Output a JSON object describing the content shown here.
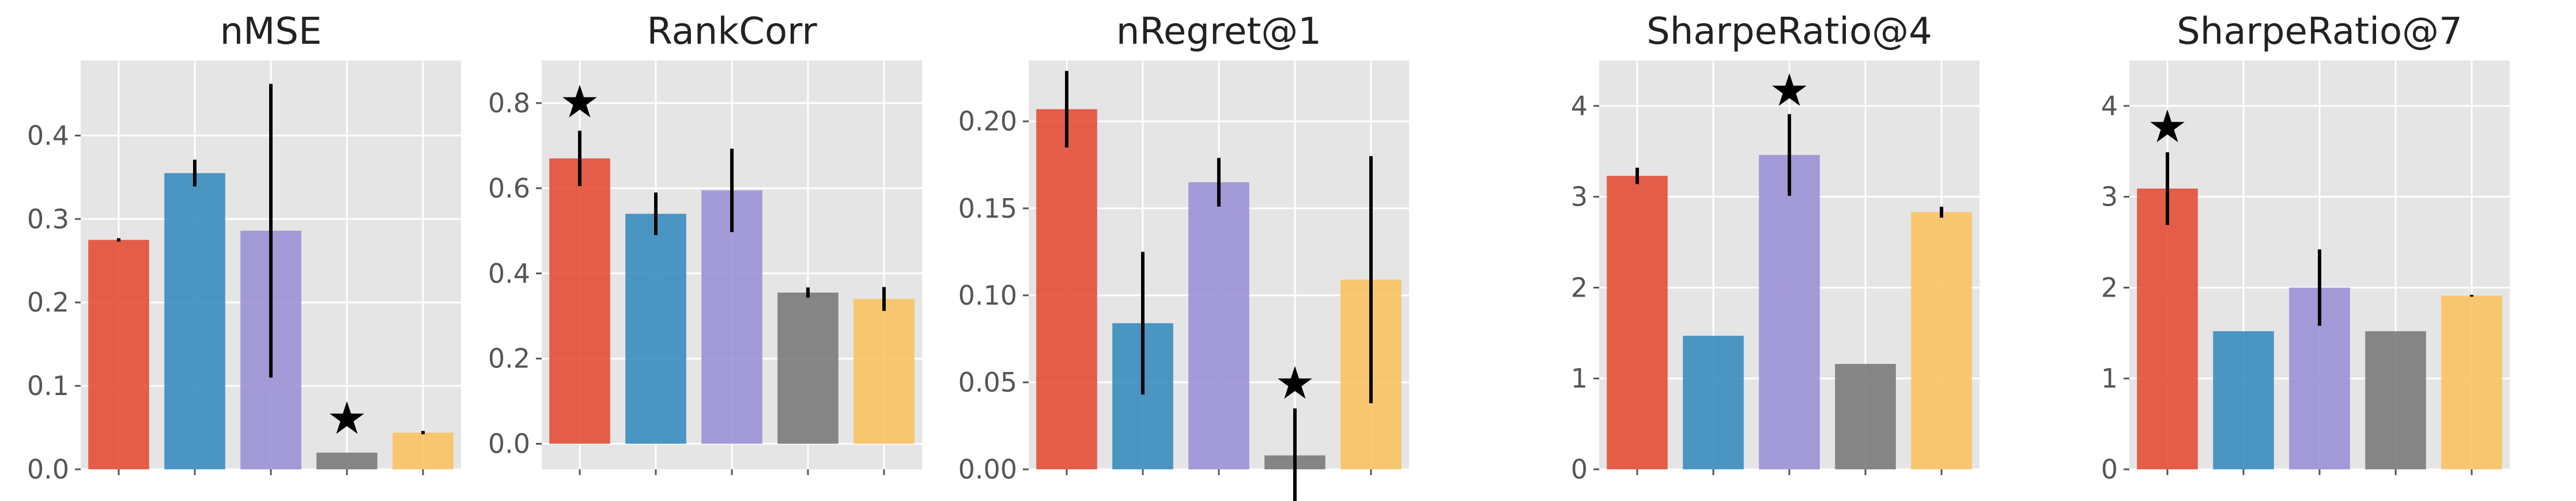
{
  "style": {
    "background": "#e5e5e5",
    "grid_color": "#ffffff",
    "tick_color": "#555555",
    "errorbar_color": "#000000",
    "bar_colors": [
      "#e24a33",
      "#348abd",
      "#988ed5",
      "#777777",
      "#fbc15e"
    ]
  },
  "chart_data": [
    {
      "type": "bar",
      "title": "nMSE",
      "categories": [
        "",
        "",
        "",
        "",
        ""
      ],
      "values": [
        0.275,
        0.355,
        0.286,
        0.02,
        0.044
      ],
      "errors": [
        0.002,
        0.016,
        0.176,
        0.0,
        0.002
      ],
      "star_index": 3,
      "star_value": 0.062,
      "ylim": [
        0,
        0.49
      ],
      "yticks": [
        0.0,
        0.1,
        0.2,
        0.3,
        0.4
      ],
      "ytick_labels": [
        "0.0",
        "0.1",
        "0.2",
        "0.3",
        "0.4"
      ],
      "grid": true
    },
    {
      "type": "bar",
      "title": "RankCorr",
      "categories": [
        "",
        "",
        "",
        "",
        ""
      ],
      "values": [
        0.67,
        0.54,
        0.595,
        0.355,
        0.34
      ],
      "errors": [
        0.065,
        0.05,
        0.098,
        0.012,
        0.028
      ],
      "star_index": 0,
      "star_value": 0.805,
      "ylim": [
        -0.06,
        0.9
      ],
      "yticks": [
        0.0,
        0.2,
        0.4,
        0.6,
        0.8
      ],
      "ytick_labels": [
        "0.0",
        "0.2",
        "0.4",
        "0.6",
        "0.8"
      ],
      "grid": true
    },
    {
      "type": "bar",
      "title": "nRegret@1",
      "categories": [
        "",
        "",
        "",
        "",
        ""
      ],
      "values": [
        0.207,
        0.084,
        0.165,
        0.008,
        0.109
      ],
      "errors": [
        0.022,
        0.041,
        0.014,
        0.027,
        0.071
      ],
      "star_index": 3,
      "star_value": 0.05,
      "ylim": [
        0,
        0.235
      ],
      "yticks": [
        0.0,
        0.05,
        0.1,
        0.15,
        0.2
      ],
      "ytick_labels": [
        "0.00",
        "0.05",
        "0.10",
        "0.15",
        "0.20"
      ],
      "grid": true
    },
    {
      "type": "bar",
      "title": "SharpeRatio@4",
      "categories": [
        "",
        "",
        "",
        "",
        ""
      ],
      "values": [
        3.23,
        1.47,
        3.46,
        1.16,
        2.83
      ],
      "errors": [
        0.09,
        0.0,
        0.45,
        0.0,
        0.06
      ],
      "star_index": 2,
      "star_value": 4.18,
      "ylim": [
        0,
        4.5
      ],
      "yticks": [
        0,
        1,
        2,
        3,
        4
      ],
      "ytick_labels": [
        "0",
        "1",
        "2",
        "3",
        "4"
      ],
      "grid": true
    },
    {
      "type": "bar",
      "title": "SharpeRatio@7",
      "categories": [
        "",
        "",
        "",
        "",
        ""
      ],
      "values": [
        3.09,
        1.52,
        2.0,
        1.52,
        1.91
      ],
      "errors": [
        0.4,
        0.0,
        0.42,
        0.0,
        0.01
      ],
      "star_index": 0,
      "star_value": 3.78,
      "ylim": [
        0,
        4.5
      ],
      "yticks": [
        0,
        1,
        2,
        3,
        4
      ],
      "ytick_labels": [
        "0",
        "1",
        "2",
        "3",
        "4"
      ],
      "grid": true
    }
  ]
}
